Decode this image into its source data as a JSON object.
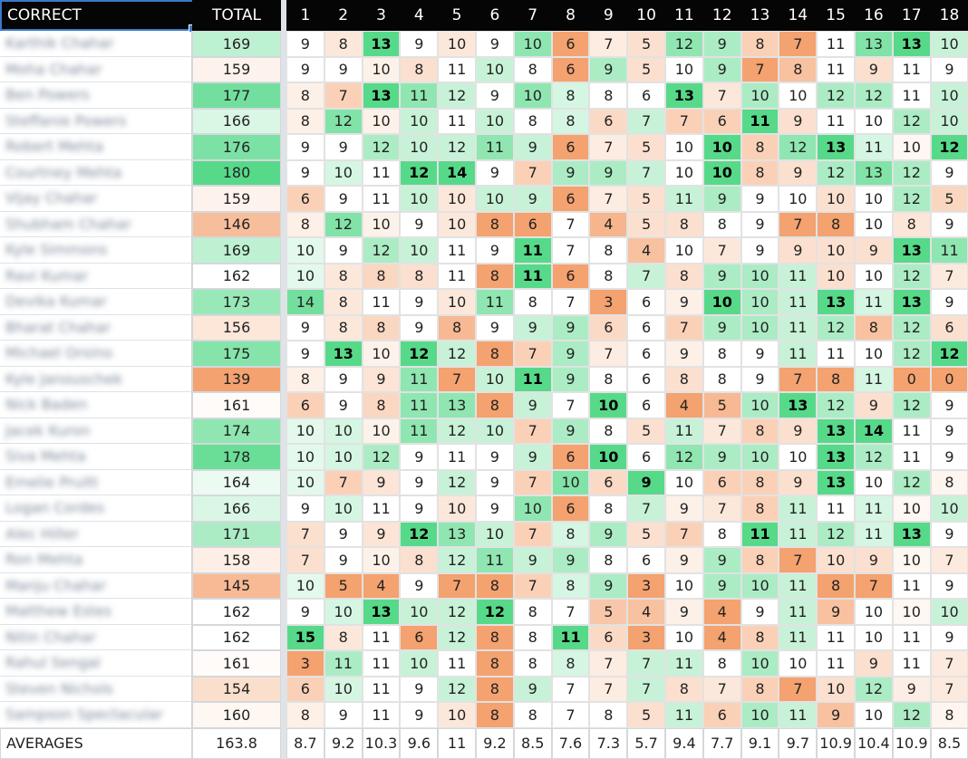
{
  "header": {
    "correct_label": "CORRECT",
    "total_label": "TOTAL",
    "holes": [
      "1",
      "2",
      "3",
      "4",
      "5",
      "6",
      "7",
      "8",
      "9",
      "10",
      "11",
      "12",
      "13",
      "14",
      "15",
      "16",
      "17",
      "18"
    ]
  },
  "rows": [
    {
      "name": "Karthik Chahar",
      "total": 169,
      "scores": [
        9,
        8,
        13,
        9,
        10,
        9,
        10,
        6,
        7,
        5,
        12,
        9,
        8,
        7,
        11,
        13,
        13,
        10
      ]
    },
    {
      "name": "Moha Chahar",
      "total": 159,
      "scores": [
        9,
        9,
        10,
        8,
        11,
        10,
        8,
        6,
        9,
        5,
        10,
        9,
        7,
        8,
        11,
        9,
        11,
        9
      ]
    },
    {
      "name": "Ben Powers",
      "total": 177,
      "scores": [
        8,
        7,
        13,
        11,
        12,
        9,
        10,
        8,
        8,
        6,
        13,
        7,
        10,
        10,
        12,
        12,
        11,
        10
      ]
    },
    {
      "name": "Steffanie Powers",
      "total": 166,
      "scores": [
        8,
        12,
        10,
        10,
        11,
        10,
        8,
        8,
        6,
        7,
        7,
        6,
        11,
        9,
        11,
        10,
        12,
        10
      ]
    },
    {
      "name": "Robert Mehta",
      "total": 176,
      "scores": [
        9,
        9,
        12,
        10,
        12,
        11,
        9,
        6,
        7,
        5,
        10,
        10,
        8,
        12,
        13,
        11,
        10,
        12
      ]
    },
    {
      "name": "Courtney Mehta",
      "total": 180,
      "scores": [
        9,
        10,
        11,
        12,
        14,
        9,
        7,
        9,
        9,
        7,
        10,
        10,
        8,
        9,
        12,
        13,
        12,
        9
      ]
    },
    {
      "name": "Vijay Chahar",
      "total": 159,
      "scores": [
        6,
        9,
        11,
        10,
        10,
        10,
        9,
        6,
        7,
        5,
        11,
        9,
        9,
        10,
        10,
        10,
        12,
        5
      ]
    },
    {
      "name": "Shubham Chahar",
      "total": 146,
      "scores": [
        8,
        12,
        10,
        9,
        10,
        8,
        6,
        7,
        4,
        5,
        8,
        8,
        9,
        7,
        8,
        10,
        8,
        9
      ]
    },
    {
      "name": "Kyle Simmons",
      "total": 169,
      "scores": [
        10,
        9,
        12,
        10,
        11,
        9,
        11,
        7,
        8,
        4,
        10,
        7,
        9,
        9,
        10,
        9,
        13,
        11
      ]
    },
    {
      "name": "Ravi Kumar",
      "total": 162,
      "scores": [
        10,
        8,
        8,
        8,
        11,
        8,
        11,
        6,
        8,
        7,
        8,
        9,
        10,
        11,
        10,
        10,
        12,
        7
      ]
    },
    {
      "name": "Devika Kumar",
      "total": 173,
      "scores": [
        14,
        8,
        11,
        9,
        10,
        11,
        8,
        7,
        3,
        6,
        9,
        10,
        10,
        11,
        13,
        11,
        13,
        9
      ]
    },
    {
      "name": "Bharat Chahar",
      "total": 156,
      "scores": [
        9,
        8,
        8,
        9,
        8,
        9,
        9,
        9,
        6,
        6,
        7,
        9,
        10,
        11,
        12,
        8,
        12,
        6
      ]
    },
    {
      "name": "Michael Orsino",
      "total": 175,
      "scores": [
        9,
        13,
        10,
        12,
        12,
        8,
        7,
        9,
        7,
        6,
        9,
        8,
        9,
        11,
        11,
        10,
        12,
        12
      ]
    },
    {
      "name": "Kyle Janouschek",
      "total": 139,
      "scores": [
        8,
        9,
        9,
        11,
        7,
        10,
        11,
        9,
        8,
        6,
        8,
        8,
        9,
        7,
        8,
        11,
        0,
        0
      ]
    },
    {
      "name": "Nick Baden",
      "total": 161,
      "scores": [
        6,
        9,
        8,
        11,
        13,
        8,
        9,
        7,
        10,
        6,
        4,
        5,
        10,
        13,
        12,
        9,
        12,
        9
      ]
    },
    {
      "name": "Jacek Kuron",
      "total": 174,
      "scores": [
        10,
        10,
        10,
        11,
        12,
        10,
        7,
        9,
        8,
        5,
        11,
        7,
        8,
        9,
        13,
        14,
        11,
        9
      ]
    },
    {
      "name": "Siva Mehta",
      "total": 178,
      "scores": [
        10,
        10,
        12,
        9,
        11,
        9,
        9,
        6,
        10,
        6,
        12,
        9,
        10,
        10,
        13,
        12,
        11,
        9
      ]
    },
    {
      "name": "Emelie Pruitt",
      "total": 164,
      "scores": [
        10,
        7,
        9,
        9,
        12,
        9,
        7,
        10,
        6,
        9,
        10,
        6,
        8,
        9,
        13,
        10,
        12,
        8
      ]
    },
    {
      "name": "Logan Cordes",
      "total": 166,
      "scores": [
        9,
        10,
        11,
        9,
        10,
        9,
        10,
        6,
        8,
        7,
        9,
        7,
        8,
        11,
        11,
        11,
        10,
        10
      ]
    },
    {
      "name": "Alec Hiller",
      "total": 171,
      "scores": [
        7,
        9,
        9,
        12,
        13,
        10,
        7,
        8,
        9,
        5,
        7,
        8,
        11,
        11,
        12,
        11,
        13,
        9
      ]
    },
    {
      "name": "Ron Mehta",
      "total": 158,
      "scores": [
        7,
        9,
        10,
        8,
        12,
        11,
        9,
        9,
        8,
        6,
        9,
        9,
        8,
        7,
        10,
        9,
        10,
        7
      ]
    },
    {
      "name": "Manju Chahar",
      "total": 145,
      "scores": [
        10,
        5,
        4,
        9,
        7,
        8,
        7,
        8,
        9,
        3,
        10,
        9,
        10,
        11,
        8,
        7,
        11,
        9
      ]
    },
    {
      "name": "Matthew Estes",
      "total": 162,
      "scores": [
        9,
        10,
        13,
        10,
        12,
        12,
        8,
        7,
        5,
        4,
        9,
        4,
        9,
        11,
        9,
        10,
        10,
        10
      ]
    },
    {
      "name": "Nitin Chahar",
      "total": 162,
      "scores": [
        15,
        8,
        11,
        6,
        12,
        8,
        8,
        11,
        6,
        3,
        10,
        4,
        8,
        11,
        11,
        10,
        11,
        9
      ]
    },
    {
      "name": "Rahul Sengal",
      "total": 161,
      "scores": [
        3,
        11,
        11,
        10,
        11,
        8,
        8,
        8,
        7,
        7,
        11,
        8,
        10,
        10,
        11,
        9,
        11,
        7
      ]
    },
    {
      "name": "Steven Nichols",
      "total": 154,
      "scores": [
        6,
        10,
        11,
        9,
        12,
        8,
        9,
        7,
        7,
        7,
        8,
        7,
        8,
        7,
        10,
        12,
        9,
        7
      ]
    },
    {
      "name": "Sampson Spectacular",
      "total": 160,
      "scores": [
        8,
        9,
        11,
        9,
        10,
        8,
        8,
        7,
        8,
        5,
        11,
        6,
        10,
        11,
        9,
        10,
        12,
        8
      ]
    }
  ],
  "averages": {
    "label": "AVERAGES",
    "total": "163.8",
    "values": [
      "8.7",
      "9.2",
      "10.3",
      "9.6",
      "11",
      "9.2",
      "8.5",
      "7.6",
      "7.3",
      "5.7",
      "9.4",
      "7.7",
      "9.1",
      "9.7",
      "10.9",
      "10.4",
      "10.9",
      "8.5"
    ]
  },
  "colors": {
    "best_green": "#57d98a",
    "mid_white": "#ffffff",
    "worst_orange": "#f4a26f"
  }
}
